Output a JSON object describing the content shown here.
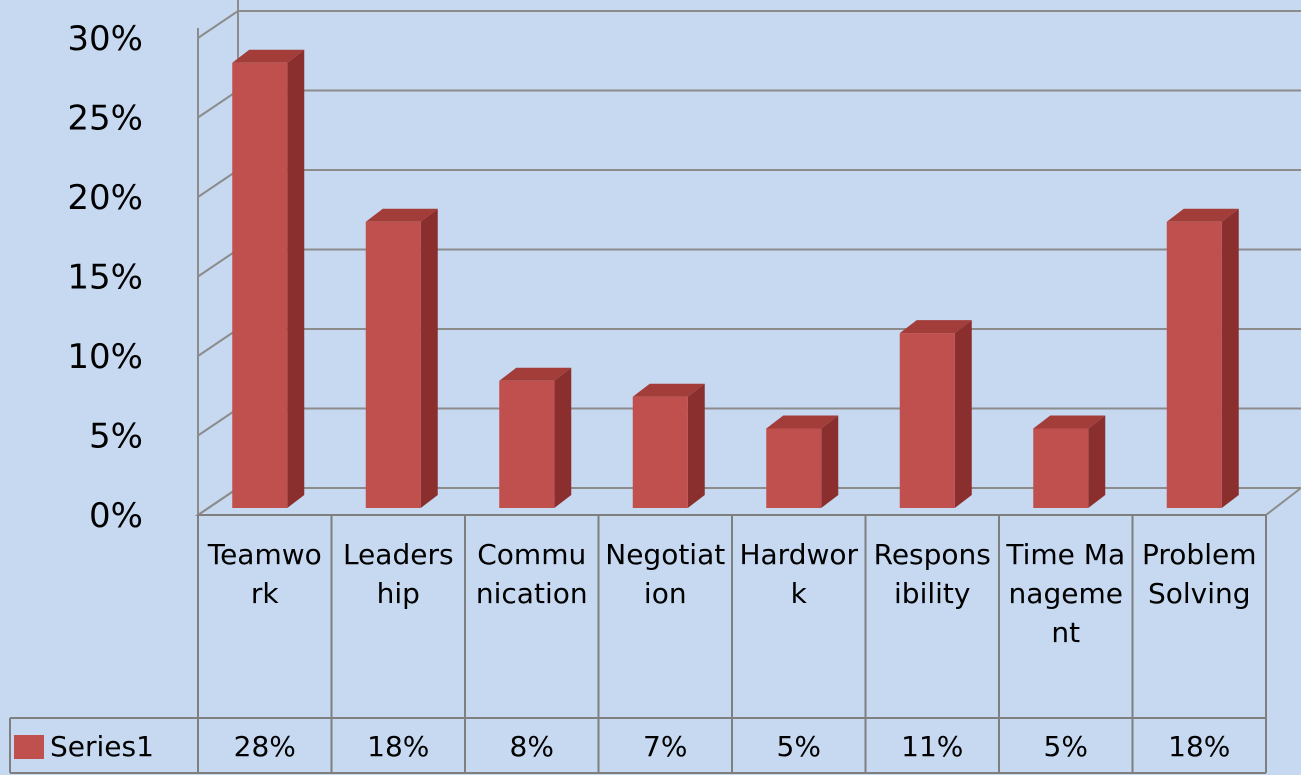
{
  "chart_data": {
    "type": "bar3d",
    "categories": [
      "Teamwork",
      "Leadership",
      "Communication",
      "Negotiation",
      "Hardwork",
      "Responsibility",
      "Time Management",
      "Problem Solving"
    ],
    "series": [
      {
        "name": "Series1",
        "color": "#c0504d",
        "values": [
          28,
          18,
          8,
          7,
          5,
          11,
          5,
          18
        ],
        "value_labels": [
          "28%",
          "18%",
          "8%",
          "7%",
          "5%",
          "11%",
          "5%",
          "18%"
        ]
      }
    ],
    "ylim": [
      0,
      30
    ],
    "yticks": [
      {
        "value": 0,
        "label": "0%"
      },
      {
        "value": 5,
        "label": "5%"
      },
      {
        "value": 10,
        "label": "10%"
      },
      {
        "value": 15,
        "label": "15%"
      },
      {
        "value": 20,
        "label": "20%"
      },
      {
        "value": 25,
        "label": "25%"
      },
      {
        "value": 30,
        "label": "30%"
      }
    ],
    "grid": true,
    "legend": "table"
  }
}
